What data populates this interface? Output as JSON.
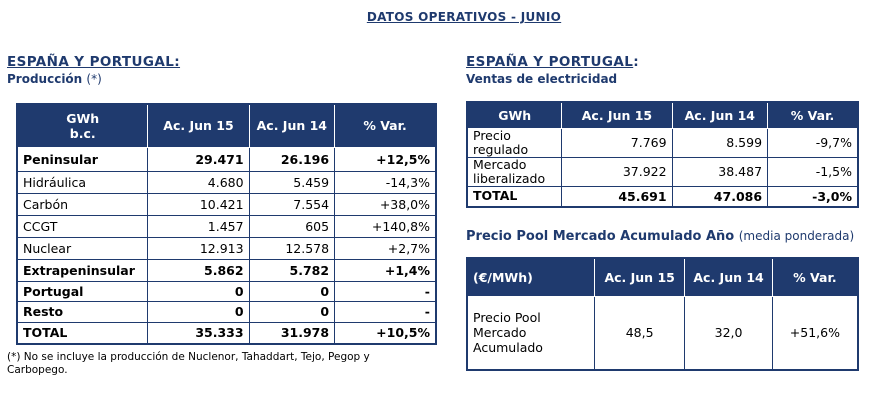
{
  "main_title": "DATOS OPERATIVOS - JUNIO",
  "left": {
    "section_title": "ESPAÑA Y PORTUGAL:",
    "subtitle": "Producción",
    "subtitle_note": "(*)",
    "headers": [
      "GWh\nb.c.",
      "Ac. Jun 15",
      "Ac. Jun 14",
      "% Var."
    ],
    "rows": [
      {
        "label": "Peninsular",
        "v15": "29.471",
        "v14": "26.196",
        "var": "+12,5%",
        "bold": true
      },
      {
        "label": "Hidráulica",
        "v15": "4.680",
        "v14": "5.459",
        "var": "-14,3%",
        "bold": false
      },
      {
        "label": "Carbón",
        "v15": "10.421",
        "v14": "7.554",
        "var": "+38,0%",
        "bold": false
      },
      {
        "label": "CCGT",
        "v15": "1.457",
        "v14": "605",
        "var": "+140,8%",
        "bold": false
      },
      {
        "label": "Nuclear",
        "v15": "12.913",
        "v14": "12.578",
        "var": "+2,7%",
        "bold": false
      },
      {
        "label": "Extrapeninsular",
        "v15": "5.862",
        "v14": "5.782",
        "var": "+1,4%",
        "bold": true
      },
      {
        "label": "Portugal",
        "v15": "0",
        "v14": "0",
        "var": "-",
        "bold": true
      },
      {
        "label": "Resto",
        "v15": "0",
        "v14": "0",
        "var": "-",
        "bold": true
      },
      {
        "label": "TOTAL",
        "v15": "35.333",
        "v14": "31.978",
        "var": "+10,5%",
        "bold": true
      }
    ],
    "footnote": "(*) No se incluye la producción de Nuclenor, Tahaddart, Tejo,  Pegop y Carbopego."
  },
  "right": {
    "section_title": "ESPAÑA Y PORTUGAL",
    "section_colon": ":",
    "subtitle": "Ventas de electricidad",
    "headers": [
      "GWh",
      "Ac. Jun 15",
      "Ac. Jun 14",
      "% Var."
    ],
    "rows": [
      {
        "label": "Precio regulado",
        "v15": "7.769",
        "v14": "8.599",
        "var": "-9,7%",
        "bold": false
      },
      {
        "label": "Mercado liberalizado",
        "v15": "37.922",
        "v14": "38.487",
        "var": "-1,5%",
        "bold": false
      },
      {
        "label": "TOTAL",
        "v15": "45.691",
        "v14": "47.086",
        "var": "-3,0%",
        "bold": true
      }
    ],
    "pool_title": "Precio Pool Mercado Acumulado Año",
    "pool_note": "(media ponderada)",
    "pool_headers": [
      "(€/MWh)",
      "Ac. Jun 15",
      "Ac.  Jun 14",
      "% Var."
    ],
    "pool_row": {
      "label": "Precio Pool Mercado Acumulado",
      "v15": "48,5",
      "v14": "32,0",
      "var": "+51,6%"
    }
  }
}
